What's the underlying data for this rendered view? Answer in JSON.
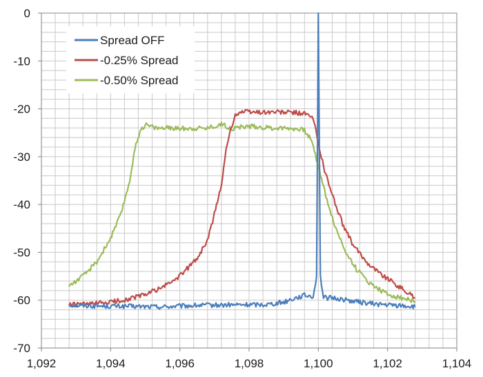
{
  "chart_data": {
    "type": "line",
    "title": "",
    "xlabel": "",
    "ylabel": "",
    "xlim": [
      1092,
      1104
    ],
    "ylim": [
      -70,
      0
    ],
    "x_ticks": [
      1092,
      1094,
      1096,
      1098,
      1100,
      1102,
      1104
    ],
    "x_tick_labels": [
      "1,092",
      "1,094",
      "1,096",
      "1,098",
      "1,100",
      "1,102",
      "1,104"
    ],
    "y_ticks": [
      0,
      -10,
      -20,
      -30,
      -40,
      -50,
      -60,
      -70
    ],
    "y_tick_labels": [
      "0",
      "-10",
      "-20",
      "-30",
      "-40",
      "-50",
      "-60",
      "-70"
    ],
    "grid": true,
    "minor_grid_x_step": 0.4,
    "minor_grid_y_step": 2,
    "legend_position": "top-left",
    "series": [
      {
        "name": "Spread OFF",
        "color": "#4a7ebb",
        "points": [
          [
            1092.8,
            -61
          ],
          [
            1093.5,
            -61.2
          ],
          [
            1094.5,
            -61.3
          ],
          [
            1095.5,
            -61.4
          ],
          [
            1096.5,
            -61.1
          ],
          [
            1097.5,
            -61.0
          ],
          [
            1098.5,
            -60.9
          ],
          [
            1099.0,
            -60.4
          ],
          [
            1099.3,
            -59.6
          ],
          [
            1099.6,
            -59.0
          ],
          [
            1099.85,
            -59.2
          ],
          [
            1099.95,
            -55
          ],
          [
            1100.0,
            0
          ],
          [
            1100.06,
            -55
          ],
          [
            1100.15,
            -59.5
          ],
          [
            1100.5,
            -59.6
          ],
          [
            1101.0,
            -60.2
          ],
          [
            1101.5,
            -60.7
          ],
          [
            1102.0,
            -61.0
          ],
          [
            1102.5,
            -61.2
          ],
          [
            1102.8,
            -61.4
          ]
        ]
      },
      {
        "name": "-0.25% Spread",
        "color": "#be4b48",
        "points": [
          [
            1092.8,
            -61
          ],
          [
            1093.5,
            -60.8
          ],
          [
            1094.0,
            -60.4
          ],
          [
            1094.5,
            -59.8
          ],
          [
            1095.0,
            -58.8
          ],
          [
            1095.5,
            -57.3
          ],
          [
            1096.0,
            -55.0
          ],
          [
            1096.5,
            -51.2
          ],
          [
            1096.8,
            -47.5
          ],
          [
            1097.0,
            -42.0
          ],
          [
            1097.2,
            -36.0
          ],
          [
            1097.3,
            -30.0
          ],
          [
            1097.4,
            -26.5
          ],
          [
            1097.5,
            -23.5
          ],
          [
            1097.6,
            -21.2
          ],
          [
            1097.8,
            -20.6
          ],
          [
            1098.2,
            -20.7
          ],
          [
            1098.8,
            -20.7
          ],
          [
            1099.3,
            -20.8
          ],
          [
            1099.6,
            -21.0
          ],
          [
            1099.85,
            -22.0
          ],
          [
            1100.0,
            -27
          ],
          [
            1100.15,
            -32
          ],
          [
            1100.4,
            -38
          ],
          [
            1100.7,
            -44
          ],
          [
            1101.0,
            -48.5
          ],
          [
            1101.4,
            -52
          ],
          [
            1101.8,
            -54.5
          ],
          [
            1102.3,
            -57
          ],
          [
            1102.8,
            -59.5
          ]
        ]
      },
      {
        "name": "-0.50% Spread",
        "color": "#9bbb59",
        "points": [
          [
            1092.8,
            -57
          ],
          [
            1093.2,
            -55
          ],
          [
            1093.6,
            -52
          ],
          [
            1094.0,
            -47
          ],
          [
            1094.3,
            -42
          ],
          [
            1094.55,
            -35
          ],
          [
            1094.7,
            -28.5
          ],
          [
            1094.85,
            -24.5
          ],
          [
            1095.0,
            -23.3
          ],
          [
            1095.3,
            -24.0
          ],
          [
            1096.0,
            -24.1
          ],
          [
            1096.8,
            -24.0
          ],
          [
            1097.2,
            -23.2
          ],
          [
            1097.5,
            -24.1
          ],
          [
            1098.0,
            -23.6
          ],
          [
            1098.6,
            -24.0
          ],
          [
            1099.2,
            -24.0
          ],
          [
            1099.6,
            -24.5
          ],
          [
            1099.8,
            -26.5
          ],
          [
            1100.0,
            -32
          ],
          [
            1100.25,
            -39
          ],
          [
            1100.5,
            -45
          ],
          [
            1100.8,
            -50
          ],
          [
            1101.1,
            -53.5
          ],
          [
            1101.5,
            -56.5
          ],
          [
            1102.0,
            -58.8
          ],
          [
            1102.5,
            -59.7
          ],
          [
            1102.8,
            -60.2
          ]
        ]
      }
    ]
  }
}
